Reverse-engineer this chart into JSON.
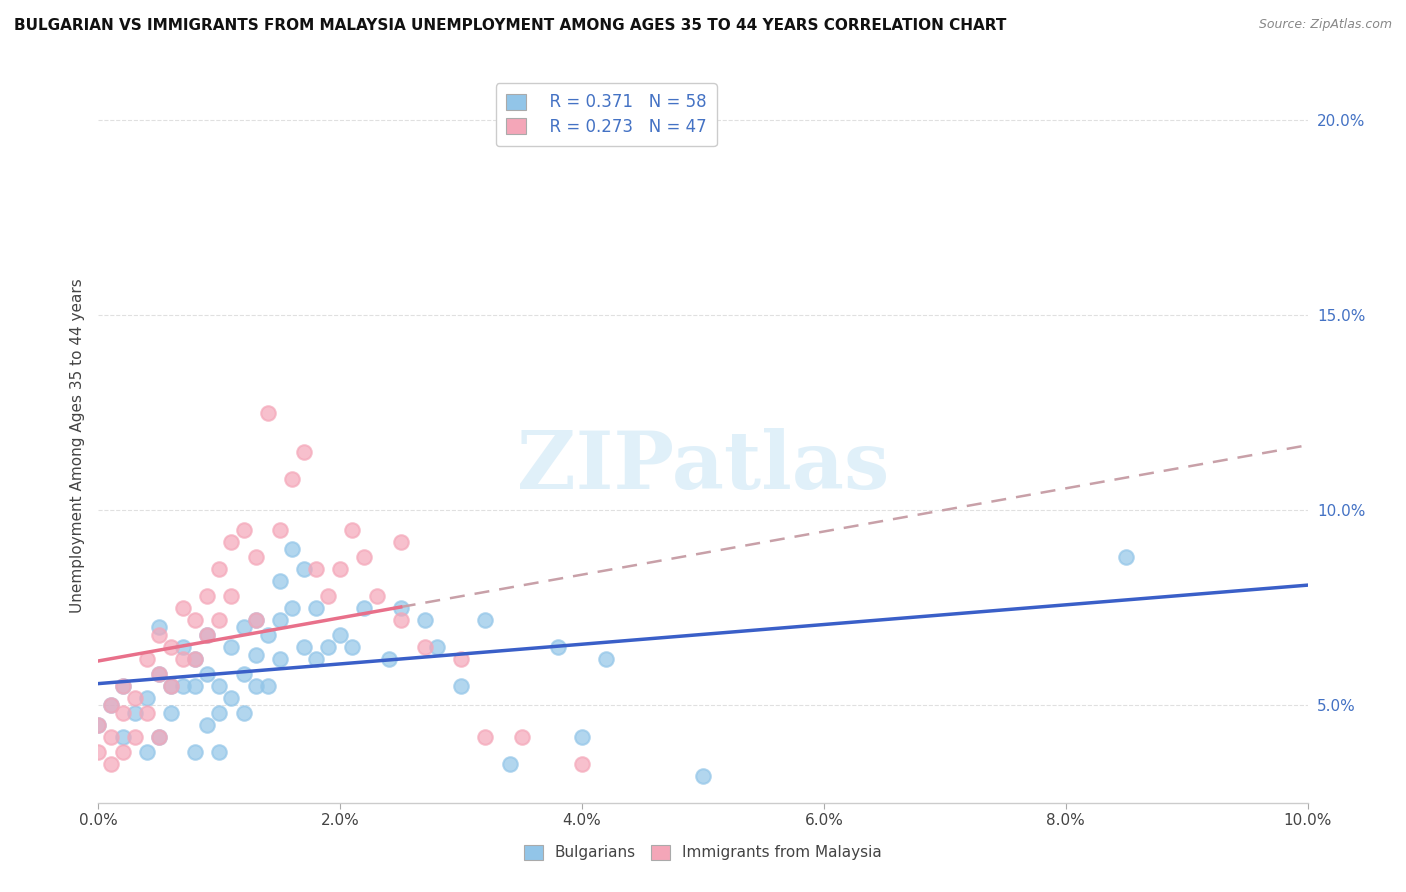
{
  "title": "BULGARIAN VS IMMIGRANTS FROM MALAYSIA UNEMPLOYMENT AMONG AGES 35 TO 44 YEARS CORRELATION CHART",
  "source": "Source: ZipAtlas.com",
  "ylabel": "Unemployment Among Ages 35 to 44 years",
  "xlim": [
    0.0,
    0.1
  ],
  "ylim": [
    0.025,
    0.208
  ],
  "xticks": [
    0.0,
    0.02,
    0.04,
    0.06,
    0.08,
    0.1
  ],
  "xtick_labels": [
    "0.0%",
    "2.0%",
    "4.0%",
    "6.0%",
    "8.0%",
    "10.0%"
  ],
  "yticks": [
    0.05,
    0.1,
    0.15,
    0.2
  ],
  "ytick_labels": [
    "5.0%",
    "10.0%",
    "15.0%",
    "20.0%"
  ],
  "watermark": "ZIPatlas",
  "legend_r1": "R = 0.371",
  "legend_n1": "N = 58",
  "legend_r2": "R = 0.273",
  "legend_n2": "N = 47",
  "blue_color": "#92C5E8",
  "pink_color": "#F4A6B8",
  "trend_blue": "#3A5FC8",
  "trend_pink": "#E8708A",
  "trend_dash_color": "#D0A0A8",
  "bulgarians_x": [
    0.0,
    0.001,
    0.002,
    0.002,
    0.003,
    0.004,
    0.004,
    0.005,
    0.005,
    0.005,
    0.006,
    0.006,
    0.007,
    0.007,
    0.008,
    0.008,
    0.008,
    0.009,
    0.009,
    0.009,
    0.01,
    0.01,
    0.01,
    0.011,
    0.011,
    0.012,
    0.012,
    0.012,
    0.013,
    0.013,
    0.013,
    0.014,
    0.014,
    0.015,
    0.015,
    0.015,
    0.016,
    0.016,
    0.017,
    0.017,
    0.018,
    0.018,
    0.019,
    0.02,
    0.021,
    0.022,
    0.024,
    0.025,
    0.027,
    0.028,
    0.03,
    0.032,
    0.034,
    0.038,
    0.04,
    0.042,
    0.05,
    0.085
  ],
  "bulgarians_y": [
    0.045,
    0.05,
    0.055,
    0.042,
    0.048,
    0.052,
    0.038,
    0.07,
    0.058,
    0.042,
    0.055,
    0.048,
    0.065,
    0.055,
    0.062,
    0.055,
    0.038,
    0.068,
    0.058,
    0.045,
    0.055,
    0.048,
    0.038,
    0.065,
    0.052,
    0.07,
    0.058,
    0.048,
    0.072,
    0.063,
    0.055,
    0.068,
    0.055,
    0.082,
    0.072,
    0.062,
    0.09,
    0.075,
    0.085,
    0.065,
    0.075,
    0.062,
    0.065,
    0.068,
    0.065,
    0.075,
    0.062,
    0.075,
    0.072,
    0.065,
    0.055,
    0.072,
    0.035,
    0.065,
    0.042,
    0.062,
    0.032,
    0.088
  ],
  "malaysia_x": [
    0.0,
    0.0,
    0.001,
    0.001,
    0.001,
    0.002,
    0.002,
    0.002,
    0.003,
    0.003,
    0.004,
    0.004,
    0.005,
    0.005,
    0.005,
    0.006,
    0.006,
    0.007,
    0.007,
    0.008,
    0.008,
    0.009,
    0.009,
    0.01,
    0.01,
    0.011,
    0.011,
    0.012,
    0.013,
    0.013,
    0.014,
    0.015,
    0.016,
    0.017,
    0.018,
    0.019,
    0.02,
    0.021,
    0.022,
    0.023,
    0.025,
    0.025,
    0.027,
    0.03,
    0.032,
    0.035,
    0.04
  ],
  "malaysia_y": [
    0.045,
    0.038,
    0.05,
    0.042,
    0.035,
    0.055,
    0.048,
    0.038,
    0.052,
    0.042,
    0.062,
    0.048,
    0.068,
    0.058,
    0.042,
    0.065,
    0.055,
    0.075,
    0.062,
    0.072,
    0.062,
    0.078,
    0.068,
    0.085,
    0.072,
    0.092,
    0.078,
    0.095,
    0.088,
    0.072,
    0.125,
    0.095,
    0.108,
    0.115,
    0.085,
    0.078,
    0.085,
    0.095,
    0.088,
    0.078,
    0.092,
    0.072,
    0.065,
    0.062,
    0.042,
    0.042,
    0.035
  ],
  "background_color": "#FFFFFF",
  "grid_color": "#E0E0E0"
}
